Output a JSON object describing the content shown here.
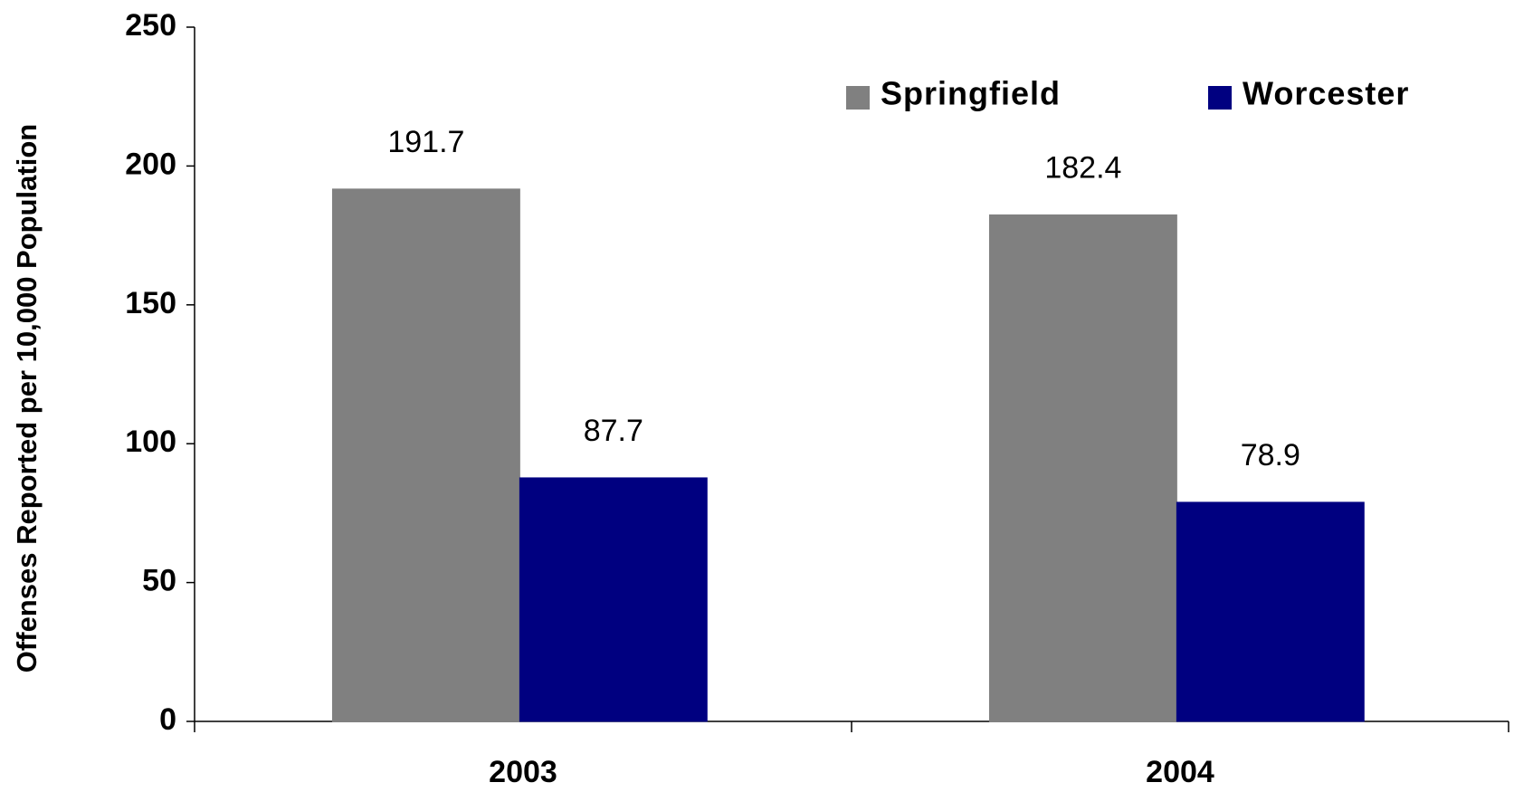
{
  "chart_data": {
    "type": "bar",
    "y_label": "Offenses Reported per 10,000 Population",
    "categories": [
      "2003",
      "2004"
    ],
    "series": [
      {
        "name": "Springfield",
        "color": "#808080",
        "values": [
          191.7,
          182.4
        ]
      },
      {
        "name": "Worcester",
        "color": "#000080",
        "values": [
          87.7,
          78.9
        ]
      }
    ],
    "ylim": [
      0,
      250
    ],
    "yticks": [
      0,
      50,
      100,
      150,
      200,
      250
    ]
  }
}
